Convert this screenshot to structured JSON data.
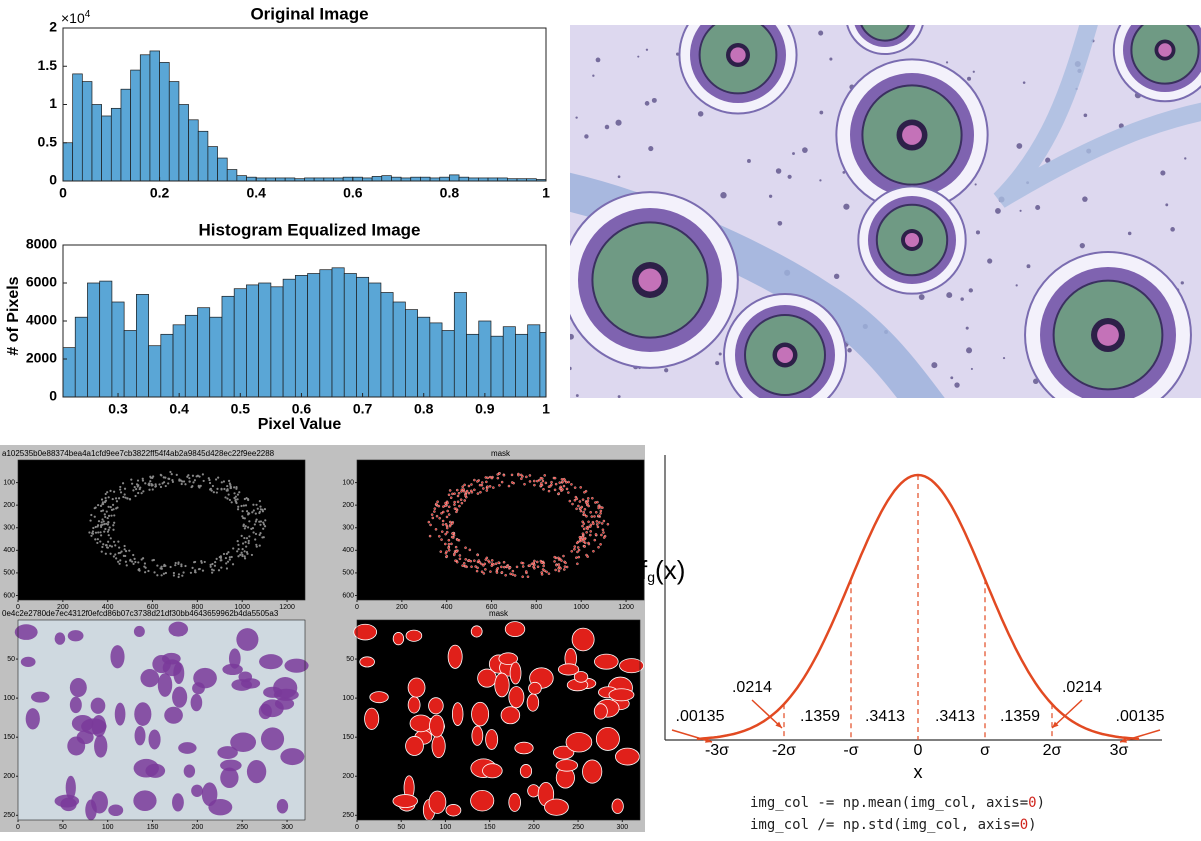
{
  "chart_data": [
    {
      "type": "histogram",
      "title": "Original Image",
      "y_multiplier": {
        "base": "×10",
        "exponent": "4"
      },
      "bins": [
        0,
        0.02,
        0.04,
        0.06,
        0.08,
        0.1,
        0.12,
        0.14,
        0.16,
        0.18,
        0.2,
        0.22,
        0.24,
        0.26,
        0.28,
        0.3,
        0.32,
        0.34,
        0.36,
        0.38,
        0.4,
        0.42,
        0.44,
        0.46,
        0.48,
        0.5,
        0.52,
        0.54,
        0.56,
        0.58,
        0.6,
        0.62,
        0.64,
        0.66,
        0.68,
        0.7,
        0.72,
        0.74,
        0.76,
        0.78,
        0.8,
        0.82,
        0.84,
        0.86,
        0.88,
        0.9,
        0.92,
        0.94,
        0.96,
        0.98,
        1
      ],
      "values": [
        0.5,
        1.4,
        1.3,
        1.0,
        0.85,
        0.95,
        1.2,
        1.45,
        1.65,
        1.7,
        1.55,
        1.3,
        1.0,
        0.8,
        0.65,
        0.45,
        0.3,
        0.15,
        0.07,
        0.05,
        0.04,
        0.04,
        0.04,
        0.04,
        0.03,
        0.04,
        0.04,
        0.04,
        0.04,
        0.05,
        0.05,
        0.04,
        0.06,
        0.07,
        0.05,
        0.04,
        0.05,
        0.05,
        0.04,
        0.05,
        0.08,
        0.05,
        0.04,
        0.04,
        0.04,
        0.04,
        0.03,
        0.03,
        0.03,
        0.02
      ],
      "color": "#5aa6d6",
      "xlim": [
        0,
        1
      ],
      "ylim": [
        0,
        2
      ],
      "xticks": [
        0,
        0.2,
        0.4,
        0.6,
        0.8,
        1
      ],
      "yticks": [
        0,
        0.5,
        1,
        1.5,
        2
      ]
    },
    {
      "type": "histogram",
      "title": "Histogram Equalized Image",
      "x_label": "Pixel Value",
      "y_label": "# of Pixels",
      "bins": [
        0.21,
        0.23,
        0.25,
        0.27,
        0.29,
        0.31,
        0.33,
        0.35,
        0.37,
        0.39,
        0.41,
        0.43,
        0.45,
        0.47,
        0.49,
        0.51,
        0.53,
        0.55,
        0.57,
        0.59,
        0.61,
        0.63,
        0.65,
        0.67,
        0.69,
        0.71,
        0.73,
        0.75,
        0.77,
        0.79,
        0.81,
        0.83,
        0.85,
        0.87,
        0.89,
        0.91,
        0.93,
        0.95,
        0.97,
        0.99,
        1
      ],
      "values": [
        2600,
        4200,
        6000,
        6100,
        5000,
        3500,
        5400,
        2700,
        3300,
        3800,
        4300,
        4700,
        4200,
        5300,
        5700,
        5900,
        6000,
        5800,
        6200,
        6400,
        6500,
        6700,
        6800,
        6500,
        6300,
        6000,
        5500,
        5000,
        4600,
        4200,
        3900,
        3500,
        5500,
        3300,
        4000,
        3200,
        3700,
        3300,
        3800,
        3400
      ],
      "color": "#5aa6d6",
      "xlim": [
        0.21,
        1
      ],
      "ylim": [
        0,
        8000
      ],
      "xticks": [
        0.3,
        0.4,
        0.5,
        0.6,
        0.7,
        0.8,
        0.9,
        1
      ],
      "yticks": [
        0,
        2000,
        4000,
        6000,
        8000
      ]
    }
  ],
  "panels": [
    {
      "title": "a102535b0e88374bea4a1cfd9ee7cb3822ff54f4ab2a9845d428ec22f9ee2288",
      "xlim": [
        0,
        1280
      ],
      "ylim": [
        0,
        620
      ],
      "xticks": [
        0,
        200,
        400,
        600,
        800,
        1000,
        1200
      ],
      "yticks": [
        100,
        200,
        300,
        400,
        500,
        600
      ]
    },
    {
      "title": "mask",
      "xlim": [
        0,
        1280
      ],
      "ylim": [
        0,
        620
      ],
      "xticks": [
        0,
        200,
        400,
        600,
        800,
        1000,
        1200
      ],
      "yticks": [
        100,
        200,
        300,
        400,
        500,
        600
      ]
    },
    {
      "title": "0e4c2e2780de7ec4312f0efcd86b07c3738d21df30bb4643659962b4da5505a3",
      "xlim": [
        0,
        320
      ],
      "ylim": [
        0,
        256
      ],
      "xticks": [
        0,
        50,
        100,
        150,
        200,
        250,
        300
      ],
      "yticks": [
        50,
        100,
        150,
        200,
        250
      ]
    },
    {
      "title": "mask",
      "xlim": [
        0,
        320
      ],
      "ylim": [
        0,
        256
      ],
      "xticks": [
        0,
        50,
        100,
        150,
        200,
        250,
        300
      ],
      "yticks": [
        50,
        100,
        150,
        200,
        250
      ]
    }
  ],
  "normal_diagram": {
    "y_label": {
      "base": "f",
      "sub": "g",
      "rest": "(x)"
    },
    "x_label": "x",
    "xticks": [
      {
        "value": -3,
        "label": "-3σ"
      },
      {
        "value": -2,
        "label": "-2σ"
      },
      {
        "value": -1,
        "label": "-σ"
      },
      0,
      {
        "value": 1,
        "label": "σ"
      },
      {
        "value": 2,
        "label": "2σ"
      },
      {
        "value": 3,
        "label": "3σ"
      }
    ],
    "area_labels": [
      ".00135",
      ".0214",
      ".1359",
      ".3413",
      ".3413",
      ".1359",
      ".0214",
      ".00135"
    ]
  },
  "code": [
    [
      "img_col -= np.mean(img_col, axis=",
      "0",
      ")"
    ],
    [
      "img_col /= np.std(img_col, axis=",
      "0",
      ")"
    ]
  ]
}
